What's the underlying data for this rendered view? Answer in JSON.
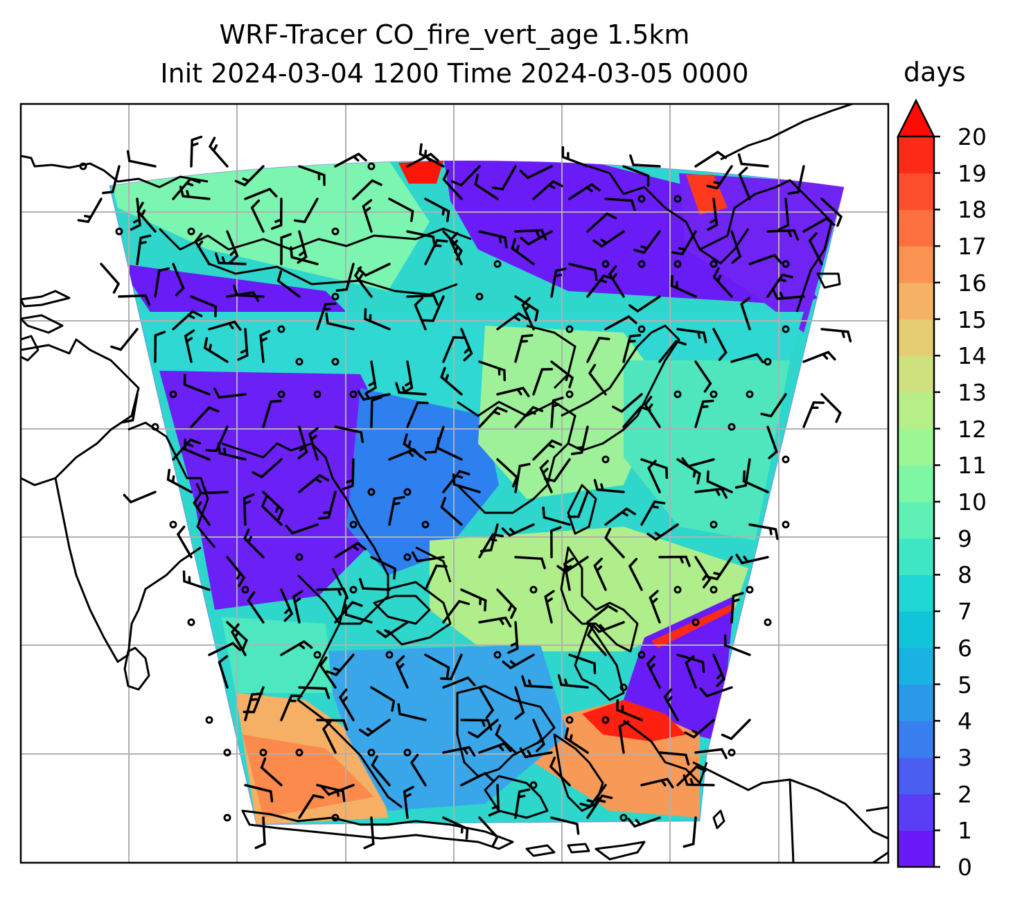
{
  "title": {
    "line1": "WRF-Tracer CO_fire_vert_age 1.5km",
    "line2": "Init 2024-03-04 1200 Time 2024-03-05 0000"
  },
  "colorbar": {
    "label": "days",
    "min": 0,
    "max": 20,
    "extend": "max",
    "ticks": [
      "0",
      "1",
      "2",
      "3",
      "4",
      "5",
      "6",
      "7",
      "8",
      "9",
      "10",
      "11",
      "12",
      "13",
      "14",
      "15",
      "16",
      "17",
      "18",
      "19",
      "20"
    ],
    "colors": [
      "#6a19f8",
      "#5a3ef5",
      "#4a5ff2",
      "#3a7ff0",
      "#2a9ae8",
      "#1ab2e0",
      "#12c4da",
      "#1ed7d4",
      "#3ee6c4",
      "#5ef0b4",
      "#7ef7a4",
      "#9af794",
      "#b6ee88",
      "#cfe07e",
      "#e6cc72",
      "#f5b264",
      "#fa9252",
      "#fc7040",
      "#fd4e2e",
      "#fe2a18",
      "#ff0a05"
    ]
  },
  "map": {
    "gridlines": true,
    "coastlines": true,
    "wind_barbs": true
  }
}
